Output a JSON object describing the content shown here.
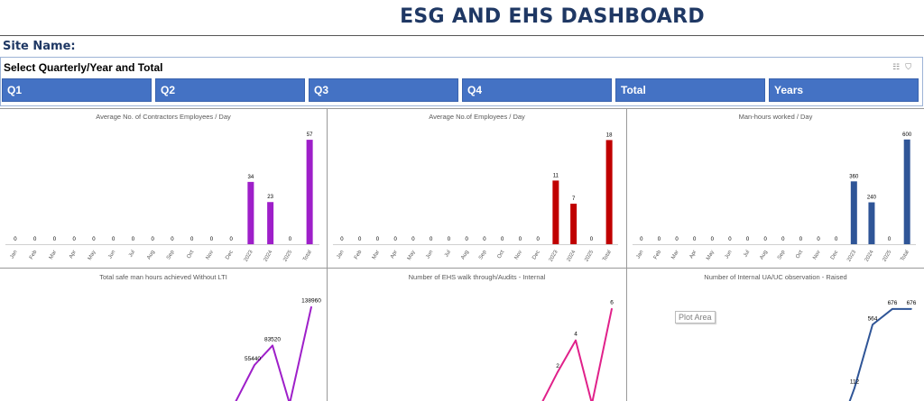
{
  "header": {
    "title": "ESG AND EHS DASHBOARD",
    "site_label": "Site Name:"
  },
  "slicer": {
    "title": "Select Quarterly/Year and Total",
    "icon_multiselect": "multi-select-icon",
    "icon_clear": "clear-filter-icon",
    "buttons": [
      "Q1",
      "Q2",
      "Q3",
      "Q4",
      "Total",
      "Years"
    ]
  },
  "chart_data": [
    {
      "type": "bar",
      "title": "Average No. of Contractors Employees / Day",
      "categories": [
        "Jan",
        "Feb",
        "Mar",
        "Apr",
        "May",
        "Jun",
        "Jul",
        "Aug",
        "Sep",
        "Oct",
        "Nov",
        "Dec",
        "2023",
        "2024",
        "2025",
        "Total"
      ],
      "values": [
        0,
        0,
        0,
        0,
        0,
        0,
        0,
        0,
        0,
        0,
        0,
        0,
        34,
        23,
        0,
        57
      ],
      "color": "#9e1fc9",
      "ylim": [
        0,
        60
      ]
    },
    {
      "type": "bar",
      "title": "Average No.of  Employees / Day",
      "categories": [
        "Jan",
        "Feb",
        "Mar",
        "Apr",
        "May",
        "Jun",
        "Jul",
        "Aug",
        "Sep",
        "Oct",
        "Nov",
        "Dec",
        "2023",
        "2024",
        "2025",
        "Total"
      ],
      "values": [
        0,
        0,
        0,
        0,
        0,
        0,
        0,
        0,
        0,
        0,
        0,
        0,
        11,
        7,
        0,
        18
      ],
      "color": "#c00000",
      "ylim": [
        0,
        19
      ]
    },
    {
      "type": "bar",
      "title": "Man-hours worked / Day",
      "categories": [
        "Jan",
        "Feb",
        "Mar",
        "Apr",
        "May",
        "Jun",
        "Jul",
        "Aug",
        "Sep",
        "Oct",
        "Nov",
        "Dec",
        "2023",
        "2024",
        "2025",
        "Total"
      ],
      "values": [
        0,
        0,
        0,
        0,
        0,
        0,
        0,
        0,
        0,
        0,
        0,
        0,
        360,
        240,
        0,
        600
      ],
      "color": "#2f5597",
      "ylim": [
        0,
        630
      ]
    },
    {
      "type": "line",
      "title": "Total safe man hours achieved Without LTI",
      "values": [
        0,
        55440,
        83520,
        0,
        138960
      ],
      "labels": [
        "",
        "55440",
        "83520",
        "",
        "138960"
      ],
      "color": "#9e1fc9",
      "ylim": [
        0,
        150000
      ]
    },
    {
      "type": "line",
      "title": "Number of EHS walk through/Audits - Internal",
      "values": [
        0,
        2,
        4,
        0,
        6
      ],
      "labels": [
        "",
        "2",
        "4",
        "",
        "6"
      ],
      "color": "#e0218a",
      "ylim": [
        0,
        6.6
      ]
    },
    {
      "type": "line",
      "title": "Number of Internal UA/UC  observation - Raised",
      "values": [
        112,
        564,
        676,
        676
      ],
      "labels": [
        "112",
        "564",
        "676",
        "676"
      ],
      "color": "#2f5597",
      "ylim": [
        0,
        720
      ]
    }
  ],
  "tooltip": {
    "plot_area": "Plot Area"
  }
}
